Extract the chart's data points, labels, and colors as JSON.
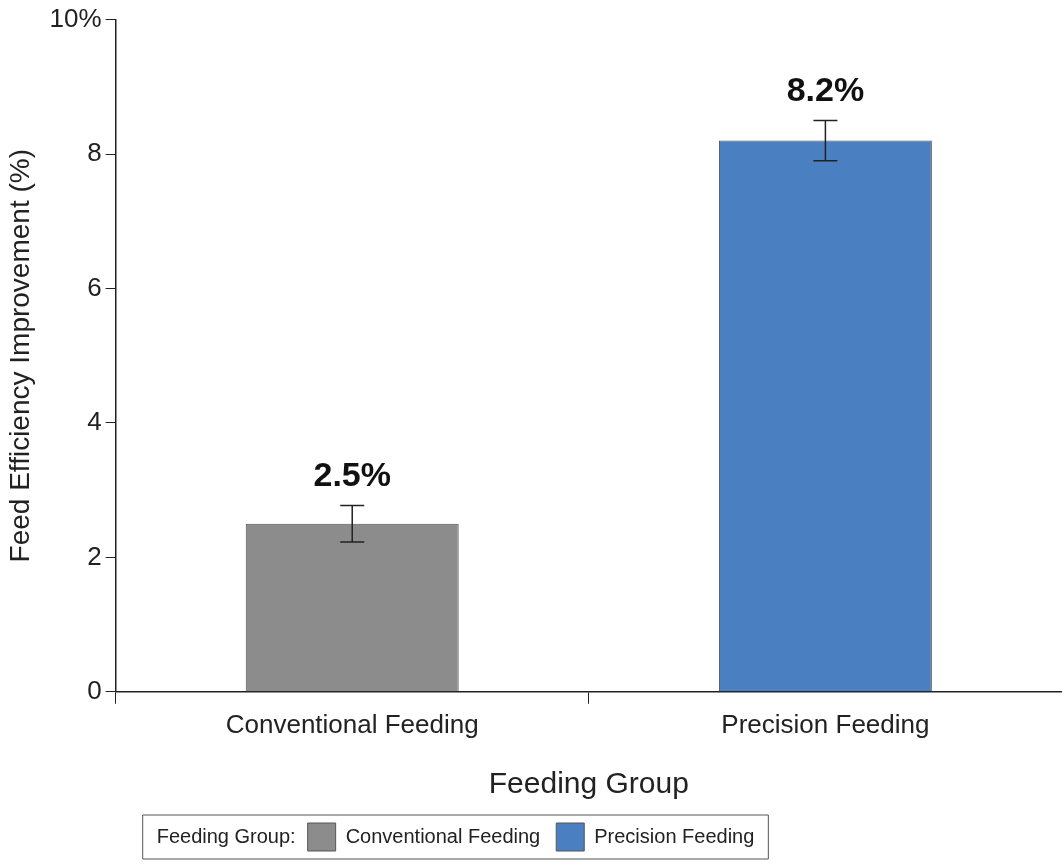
{
  "chart_data": {
    "type": "bar",
    "xlabel": "Feeding Group",
    "ylabel": "Feed Efficiency Improvement (%)",
    "legend_title": "Feeding Group:",
    "categories": [
      "Conventional Feeding",
      "Precision Feeding"
    ],
    "series": [
      {
        "name": "Conventional Feeding",
        "color": "#8c8c8c",
        "values": [
          2.5,
          null
        ],
        "errors": [
          0.27,
          null
        ],
        "value_labels": [
          "2.5%",
          null
        ]
      },
      {
        "name": "Precision Feeding",
        "color": "#4a7fc1",
        "values": [
          null,
          8.2
        ],
        "errors": [
          null,
          0.3
        ],
        "value_labels": [
          null,
          "8.2%"
        ]
      }
    ],
    "ylim": [
      0,
      10
    ],
    "yticks": [
      0,
      2,
      4,
      6,
      8,
      {
        "value": 10,
        "label": "10%"
      }
    ],
    "grid": false,
    "legend": "bottom"
  }
}
